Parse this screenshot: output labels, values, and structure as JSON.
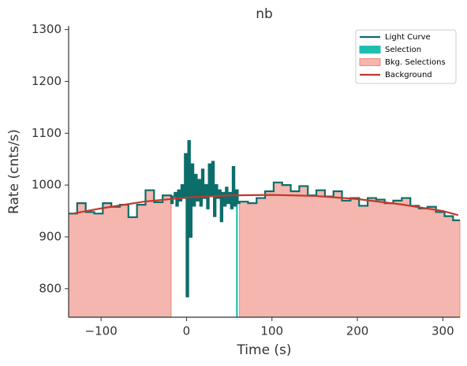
{
  "chart_data": {
    "type": "step",
    "title": "nb",
    "x_label": "Time (s)",
    "y_label": "Rate (cnts/s)",
    "xlim": [
      -138,
      320
    ],
    "ylim": [
      745,
      1307
    ],
    "xticks": [
      {
        "value": -100,
        "label": "−100"
      },
      0,
      100,
      200,
      300
    ],
    "yticks": [
      800,
      900,
      1000,
      1100,
      1200,
      1300
    ],
    "legend": "upper right",
    "light_curve": {
      "name": "Light Curve",
      "color": "#0b6e6b",
      "bins": [
        -138,
        -128,
        -118,
        -108,
        -98,
        -88,
        -78,
        -68,
        -58,
        -48,
        -38,
        -28,
        -18,
        -16,
        -14,
        -12,
        -10,
        -8,
        -6,
        -4,
        -2,
        0,
        2,
        4,
        6,
        8,
        10,
        12,
        14,
        16,
        18,
        20,
        22,
        24,
        26,
        28,
        30,
        32,
        34,
        36,
        38,
        40,
        42,
        44,
        46,
        48,
        50,
        52,
        54,
        56,
        58,
        60,
        62,
        72,
        82,
        92,
        102,
        112,
        122,
        132,
        142,
        152,
        162,
        172,
        182,
        192,
        202,
        212,
        222,
        232,
        242,
        252,
        262,
        272,
        282,
        292,
        302,
        312,
        320
      ],
      "values": [
        945,
        965,
        948,
        945,
        965,
        958,
        962,
        938,
        962,
        990,
        967,
        980,
        965,
        978,
        985,
        960,
        990,
        970,
        1000,
        975,
        1060,
        785,
        1085,
        900,
        1040,
        960,
        1020,
        970,
        1010,
        960,
        1030,
        975,
        1000,
        955,
        1040,
        980,
        1045,
        940,
        1000,
        975,
        990,
        930,
        985,
        960,
        995,
        965,
        985,
        955,
        1035,
        960,
        990,
        965,
        968,
        965,
        975,
        988,
        1005,
        1000,
        988,
        998,
        980,
        990,
        978,
        988,
        970,
        975,
        960,
        975,
        972,
        965,
        970,
        975,
        960,
        955,
        958,
        948,
        940,
        932
      ]
    },
    "selection": {
      "name": "Selection",
      "color": "#1fbfb0",
      "range": [
        58,
        60
      ]
    },
    "bkg_selections": {
      "name": "Bkg. Selections",
      "color": "#f4b6ae",
      "edge": "#f08a7c",
      "ranges": [
        [
          -138,
          -18
        ],
        [
          62,
          320
        ]
      ]
    },
    "background": {
      "name": "Background",
      "color": "#c0392b",
      "x": [
        -133,
        -100,
        -50,
        0,
        50,
        100,
        150,
        200,
        250,
        300,
        318
      ],
      "values": [
        945,
        955,
        968,
        976,
        980,
        981,
        979,
        973,
        963,
        950,
        942
      ]
    }
  }
}
